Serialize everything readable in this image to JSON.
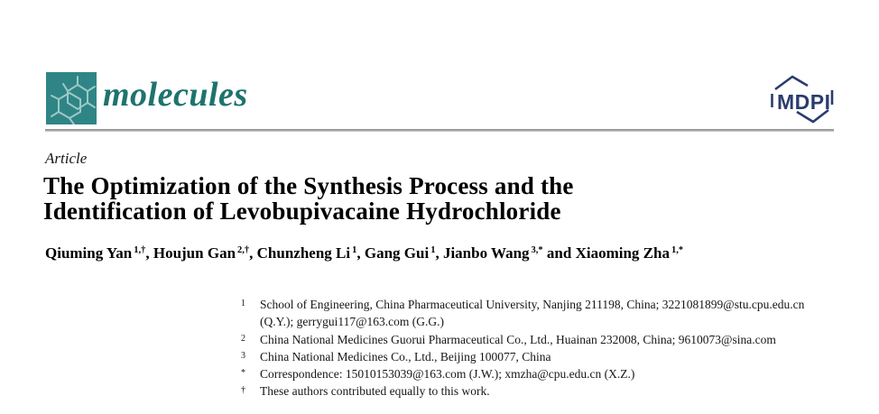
{
  "header": {
    "journal_name": "molecules",
    "publisher_logo_text": "MDPI",
    "colors": {
      "logo_square": "#2F8585",
      "logo_structure": "#9EC8C8",
      "wordmark": "#1E736E",
      "mdpi_navy": "#2B3C6E",
      "divider_gray": "#9A9A9A"
    }
  },
  "article": {
    "type_label": "Article",
    "title_lines": [
      "The Optimization of the Synthesis Process and the",
      "Identification of Levobupivacaine Hydrochloride"
    ],
    "authors": [
      {
        "name": "Qiuming Yan",
        "sup": "1,†"
      },
      {
        "name": "Houjun Gan",
        "sup": "2,†"
      },
      {
        "name": "Chunzheng Li",
        "sup": "1"
      },
      {
        "name": "Gang Gui",
        "sup": "1"
      },
      {
        "name": "Jianbo Wang",
        "sup": "3,*"
      },
      {
        "name": "Xiaoming Zha",
        "sup": "1,*"
      }
    ],
    "authors_conjunction": "and"
  },
  "affiliations": [
    {
      "marker": "1",
      "text": "School of Engineering, China Pharmaceutical University, Nanjing 211198, China; 3221081899@stu.cpu.edu.cn (Q.Y.); gerrygui117@163.com (G.G.)"
    },
    {
      "marker": "2",
      "text": "China National Medicines Guorui Pharmaceutical Co., Ltd., Huainan 232008, China; 9610073@sina.com"
    },
    {
      "marker": "3",
      "text": "China National Medicines Co., Ltd., Beijing 100077, China"
    },
    {
      "marker": "*",
      "text": "Correspondence: 15010153039@163.com (J.W.); xmzha@cpu.edu.cn (X.Z.)"
    },
    {
      "marker": "†",
      "text": "These authors contributed equally to this work."
    }
  ]
}
